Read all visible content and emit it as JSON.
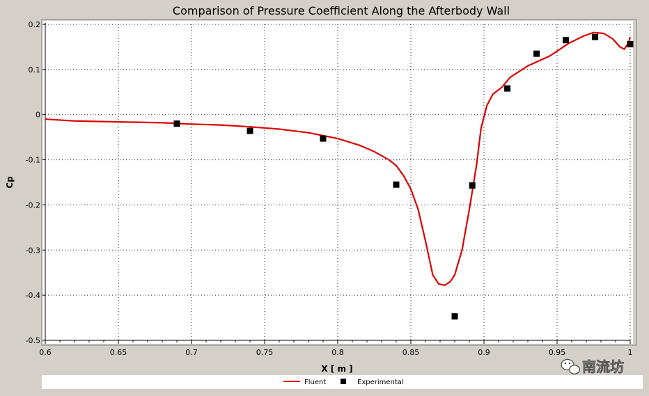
{
  "chart_data": {
    "type": "line",
    "title": "Comparison of Pressure Coefficient Along the Afterbody Wall",
    "xlabel": "X [ m ]",
    "ylabel": "Cp",
    "xlim": [
      0.6,
      1.0
    ],
    "ylim": [
      -0.5,
      0.2
    ],
    "x_ticks": [
      0.6,
      0.65,
      0.7,
      0.75,
      0.8,
      0.85,
      0.9,
      0.95,
      1.0
    ],
    "x_tick_labels": [
      "0.6",
      "0.65",
      "0.7",
      "0.75",
      "0.8",
      "0.85",
      "0.9",
      "0.95",
      "1"
    ],
    "y_ticks": [
      0.2,
      0.1,
      0,
      -0.1,
      -0.2,
      -0.3,
      -0.4,
      -0.5
    ],
    "y_tick_labels": [
      "0.2",
      "0.1",
      "0",
      "-0.1",
      "-0.2",
      "-0.3",
      "-0.4",
      "-0.5"
    ],
    "grid": true,
    "legend_position": "bottom",
    "series": [
      {
        "name": "Fluent",
        "kind": "line",
        "color": "#dd0000",
        "points": [
          [
            0.6,
            -0.01
          ],
          [
            0.62,
            -0.014
          ],
          [
            0.65,
            -0.016
          ],
          [
            0.68,
            -0.018
          ],
          [
            0.7,
            -0.021
          ],
          [
            0.72,
            -0.023
          ],
          [
            0.74,
            -0.027
          ],
          [
            0.76,
            -0.032
          ],
          [
            0.78,
            -0.04
          ],
          [
            0.8,
            -0.053
          ],
          [
            0.815,
            -0.068
          ],
          [
            0.825,
            -0.082
          ],
          [
            0.835,
            -0.1
          ],
          [
            0.84,
            -0.113
          ],
          [
            0.845,
            -0.135
          ],
          [
            0.85,
            -0.165
          ],
          [
            0.855,
            -0.21
          ],
          [
            0.86,
            -0.28
          ],
          [
            0.865,
            -0.355
          ],
          [
            0.869,
            -0.375
          ],
          [
            0.873,
            -0.378
          ],
          [
            0.877,
            -0.37
          ],
          [
            0.88,
            -0.355
          ],
          [
            0.885,
            -0.3
          ],
          [
            0.89,
            -0.21
          ],
          [
            0.895,
            -0.11
          ],
          [
            0.898,
            -0.03
          ],
          [
            0.902,
            0.02
          ],
          [
            0.906,
            0.045
          ],
          [
            0.912,
            0.06
          ],
          [
            0.918,
            0.083
          ],
          [
            0.93,
            0.108
          ],
          [
            0.945,
            0.13
          ],
          [
            0.958,
            0.158
          ],
          [
            0.968,
            0.174
          ],
          [
            0.975,
            0.182
          ],
          [
            0.982,
            0.18
          ],
          [
            0.988,
            0.168
          ],
          [
            0.993,
            0.15
          ],
          [
            0.996,
            0.145
          ],
          [
            0.999,
            0.16
          ],
          [
            1.0,
            0.172
          ]
        ]
      },
      {
        "name": "Experimental",
        "kind": "scatter",
        "color": "#000000",
        "points": [
          [
            0.69,
            -0.02
          ],
          [
            0.74,
            -0.036
          ],
          [
            0.79,
            -0.053
          ],
          [
            0.84,
            -0.155
          ],
          [
            0.88,
            -0.447
          ],
          [
            0.892,
            -0.157
          ],
          [
            0.916,
            0.058
          ],
          [
            0.936,
            0.135
          ],
          [
            0.956,
            0.165
          ],
          [
            0.976,
            0.172
          ],
          [
            1.0,
            0.156
          ]
        ]
      }
    ]
  },
  "watermark": {
    "text": "南流坊",
    "icon": "wechat-icon"
  }
}
